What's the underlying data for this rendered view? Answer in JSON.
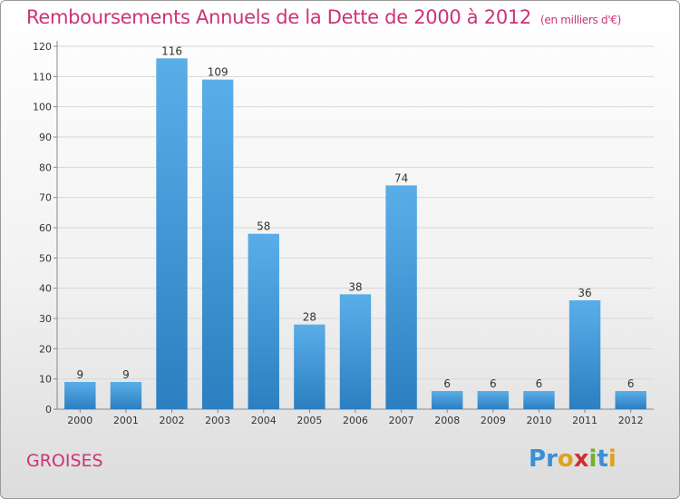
{
  "header": {
    "title": "Remboursements Annuels de la Dette de 2000 à 2012",
    "unit": "(en milliers d'€)"
  },
  "footer": {
    "commune": "GROISES",
    "logo": "Proxiti"
  },
  "colors": {
    "accent": "#cc3377",
    "bar_top": "#5aaee8",
    "bar_bottom": "#2c7fc0",
    "logo_letters": [
      "#3a8fd6",
      "#3a8fd6",
      "#e0a020",
      "#d03030",
      "#70b030",
      "#3a8fd6",
      "#e0a020"
    ]
  },
  "chart_data": {
    "type": "bar",
    "title": "Remboursements Annuels de la Dette de 2000 à 2012",
    "subtitle": "(en milliers d'€)",
    "categories": [
      "2000",
      "2001",
      "2002",
      "2003",
      "2004",
      "2005",
      "2006",
      "2007",
      "2008",
      "2009",
      "2010",
      "2011",
      "2012"
    ],
    "values": [
      9,
      9,
      116,
      109,
      58,
      28,
      38,
      74,
      6,
      6,
      6,
      36,
      6
    ],
    "ylim": [
      0,
      120
    ],
    "yticks": [
      0,
      10,
      20,
      30,
      40,
      50,
      60,
      70,
      80,
      90,
      100,
      110,
      120
    ],
    "grid": true,
    "legend": "none"
  }
}
